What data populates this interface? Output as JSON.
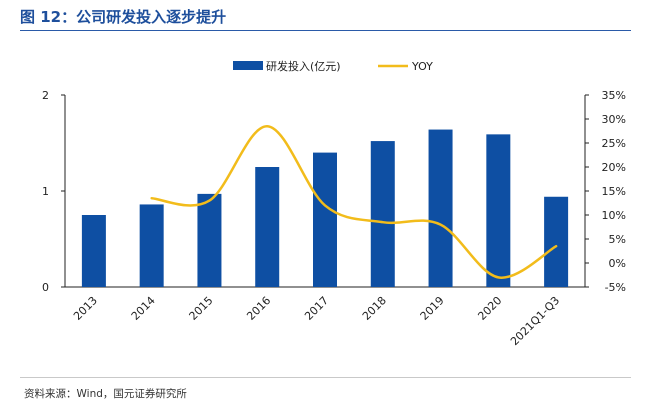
{
  "figure_title": "图 12：公司研发投入逐步提升",
  "source_note": "资料来源：Wind，国元证券研究所",
  "colors": {
    "bar": "#0e4fa3",
    "line": "#f2bc1b",
    "title": "#1e4f9c"
  },
  "chart_data": {
    "type": "bar+line",
    "title": "",
    "categories": [
      "2013",
      "2014",
      "2015",
      "2016",
      "2017",
      "2018",
      "2019",
      "2020",
      "2021Q1-Q3"
    ],
    "series": [
      {
        "name": "研发投入(亿元)",
        "type": "bar",
        "axis": "left",
        "values": [
          0.75,
          0.86,
          0.97,
          1.25,
          1.4,
          1.52,
          1.64,
          1.59,
          0.94
        ]
      },
      {
        "name": "YOY",
        "type": "line",
        "axis": "right",
        "smooth": true,
        "values": [
          null,
          13.5,
          13.0,
          28.5,
          12.0,
          8.5,
          8.0,
          -3.0,
          3.5
        ]
      }
    ],
    "left_axis": {
      "min": 0,
      "max": 2,
      "ticks": [
        0,
        1,
        2
      ],
      "tick_labels": [
        "0",
        "1",
        "2"
      ]
    },
    "right_axis": {
      "min": -5,
      "max": 35,
      "ticks": [
        -5,
        0,
        5,
        10,
        15,
        20,
        25,
        30,
        35
      ],
      "tick_labels": [
        "-5%",
        "0%",
        "5%",
        "10%",
        "15%",
        "20%",
        "25%",
        "30%",
        "35%"
      ]
    },
    "legend": {
      "position": "top-center",
      "bar_label": "研发投入(亿元)",
      "line_label": "YOY"
    },
    "grid": false
  }
}
